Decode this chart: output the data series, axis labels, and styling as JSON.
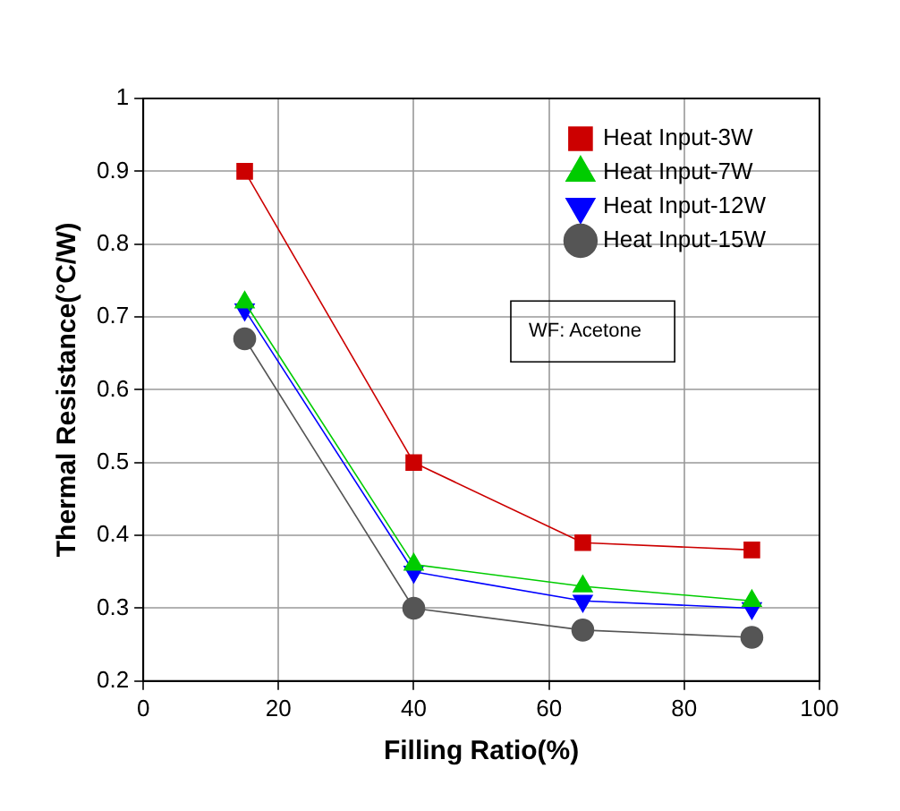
{
  "chart_data": {
    "type": "line",
    "xlabel": "Filling Ratio(%)",
    "ylabel": "Thermal Resistance(°C/W)",
    "x": [
      15,
      40,
      65,
      90
    ],
    "series": [
      {
        "name": "Heat Input-3W",
        "color": "#cc0000",
        "marker": "square",
        "values": [
          0.9,
          0.5,
          0.39,
          0.38
        ]
      },
      {
        "name": "Heat Input-7W",
        "color": "#00cc00",
        "marker": "triangle",
        "values": [
          0.72,
          0.36,
          0.33,
          0.31
        ]
      },
      {
        "name": "Heat Input-12W",
        "color": "#0000ff",
        "marker": "triangle-down",
        "values": [
          0.71,
          0.35,
          0.31,
          0.3
        ]
      },
      {
        "name": "Heat Input-15W",
        "color": "#555555",
        "marker": "circle",
        "values": [
          0.67,
          0.3,
          0.27,
          0.26
        ]
      }
    ],
    "xlim": [
      0,
      100
    ],
    "xticks": [
      0,
      20,
      40,
      60,
      80,
      100
    ],
    "ylim": [
      0.2,
      1
    ],
    "yticks": [
      0.2,
      0.3,
      0.4,
      0.5,
      0.6,
      0.7,
      0.8,
      0.9,
      1
    ],
    "grid": true,
    "legend": "top right",
    "line_style": "solid",
    "annotations": [
      "WF: Acetone"
    ]
  }
}
